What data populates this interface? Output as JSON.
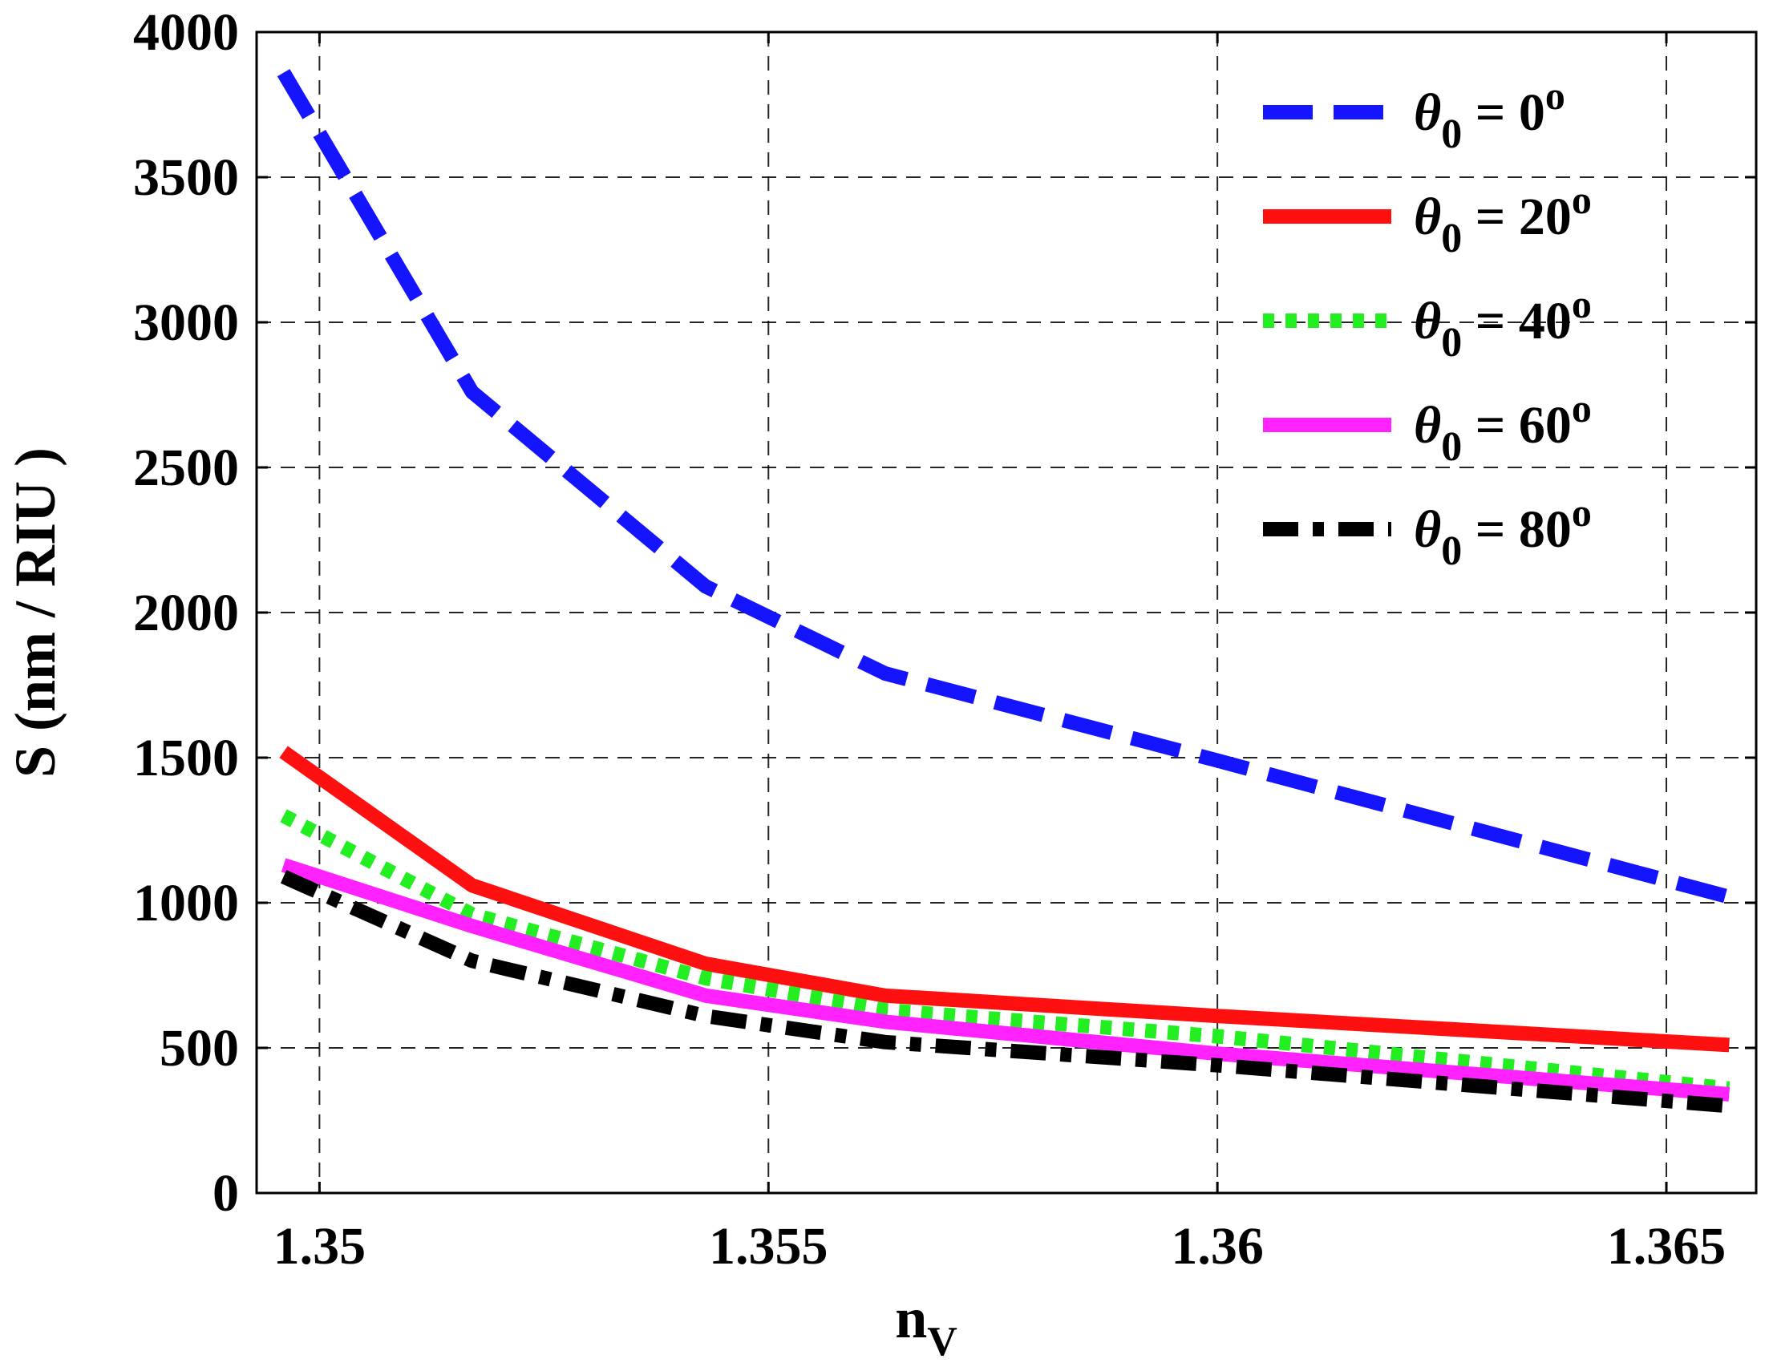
{
  "chart_data": {
    "type": "line",
    "xlabel": "n",
    "xlabel_sub": "V",
    "ylabel": "S (nm / RIU )",
    "xlim": [
      1.3493,
      1.366
    ],
    "ylim": [
      0,
      4000
    ],
    "x_ticks": [
      1.35,
      1.355,
      1.36,
      1.365
    ],
    "x_tick_labels": [
      "1.35",
      "1.355",
      "1.36",
      "1.365"
    ],
    "y_ticks": [
      0,
      500,
      1000,
      1500,
      2000,
      2500,
      3000,
      3500,
      4000
    ],
    "y_tick_labels": [
      "0",
      "500",
      "1000",
      "1500",
      "2000",
      "2500",
      "3000",
      "3500",
      "4000"
    ],
    "grid": true,
    "legend_position": "top-right",
    "series": [
      {
        "name": "θ0 = 0o",
        "legend": {
          "symbol": "θ",
          "sub": "0",
          "eq": " = ",
          "val": "0",
          "sup": "o"
        },
        "color": "#1414ff",
        "style": "dashed",
        "x": [
          1.3496,
          1.3517,
          1.3543,
          1.3563,
          1.36,
          1.3657
        ],
        "y": [
          3860,
          2760,
          2090,
          1790,
          1490,
          1020
        ]
      },
      {
        "name": "θ0 = 20o",
        "legend": {
          "symbol": "θ",
          "sub": "0",
          "eq": " = ",
          "val": "20",
          "sup": "o"
        },
        "color": "#ff1010",
        "style": "solid",
        "x": [
          1.3496,
          1.3517,
          1.3543,
          1.3563,
          1.36,
          1.3657
        ],
        "y": [
          1520,
          1060,
          790,
          680,
          610,
          510
        ]
      },
      {
        "name": "θ0 = 40o",
        "legend": {
          "symbol": "θ",
          "sub": "0",
          "eq": " = ",
          "val": "40",
          "sup": "o"
        },
        "color": "#22ee22",
        "style": "dotted",
        "x": [
          1.3496,
          1.3517,
          1.3543,
          1.3563,
          1.36,
          1.3657
        ],
        "y": [
          1300,
          960,
          740,
          630,
          540,
          360
        ]
      },
      {
        "name": "θ0 = 60o",
        "legend": {
          "symbol": "θ",
          "sub": "0",
          "eq": " = ",
          "val": "60",
          "sup": "o"
        },
        "color": "#ff22ff",
        "style": "solid",
        "x": [
          1.3496,
          1.3517,
          1.3543,
          1.3563,
          1.36,
          1.3657
        ],
        "y": [
          1130,
          920,
          680,
          590,
          480,
          340
        ]
      },
      {
        "name": "θ0 = 80o",
        "legend": {
          "symbol": "θ",
          "sub": "0",
          "eq": " = ",
          "val": "80",
          "sup": "o"
        },
        "color": "#000000",
        "style": "dashdot",
        "x": [
          1.3496,
          1.3517,
          1.3543,
          1.3563,
          1.36,
          1.3657
        ],
        "y": [
          1090,
          800,
          610,
          520,
          440,
          300
        ]
      }
    ]
  }
}
